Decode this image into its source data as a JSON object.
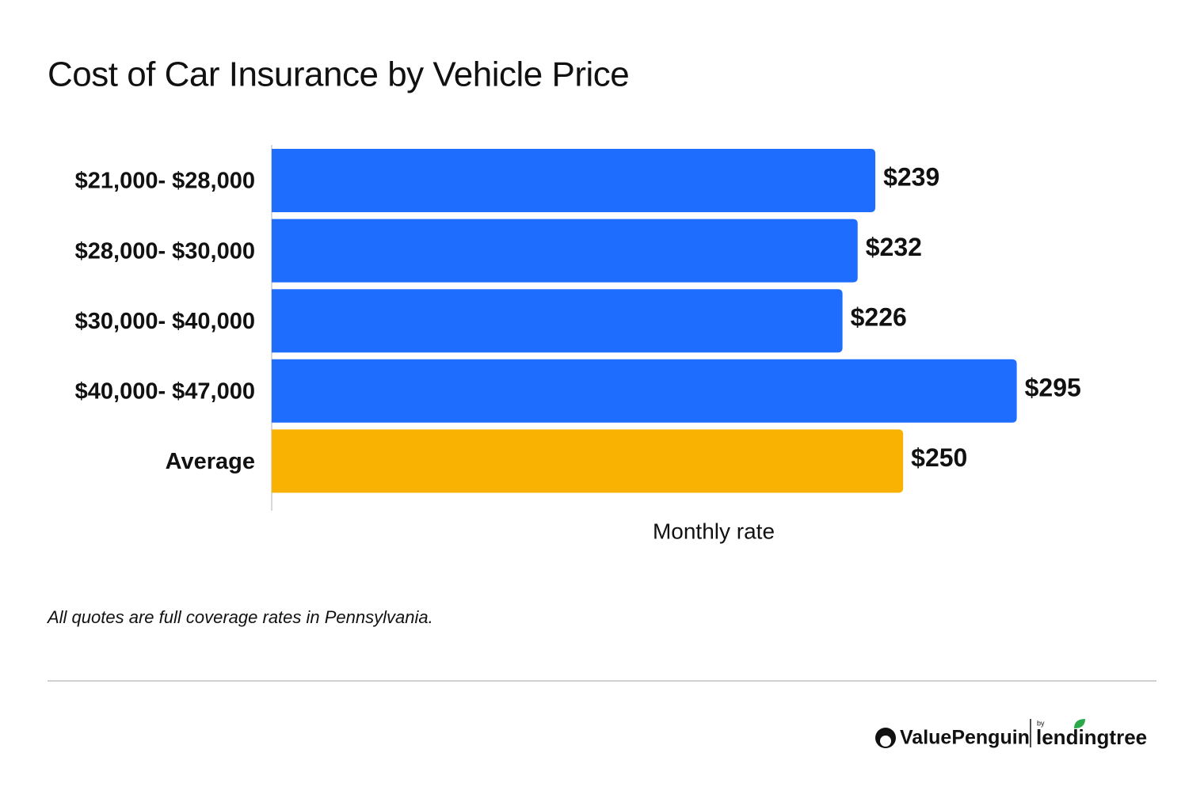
{
  "chart_data": {
    "type": "bar",
    "orientation": "horizontal",
    "title": "Cost of Car Insurance by Vehicle Price",
    "categories": [
      "$21,000- $28,000",
      "$28,000- $30,000",
      "$30,000- $40,000",
      "$40,000- $47,000",
      "Average"
    ],
    "values": [
      239,
      232,
      226,
      295,
      250
    ],
    "value_labels": [
      "$239",
      "$232",
      "$226",
      "$295",
      "$250"
    ],
    "colors": [
      "#1f6dff",
      "#1f6dff",
      "#1f6dff",
      "#1f6dff",
      "#f9b202"
    ],
    "xlabel": "Monthly rate",
    "xlim": [
      0,
      350
    ]
  },
  "footnote": "All quotes are  full coverage rates in Pennsylvania.",
  "brand": {
    "name": "ValuePenguin",
    "by": "by",
    "partner": "lendingtree"
  }
}
